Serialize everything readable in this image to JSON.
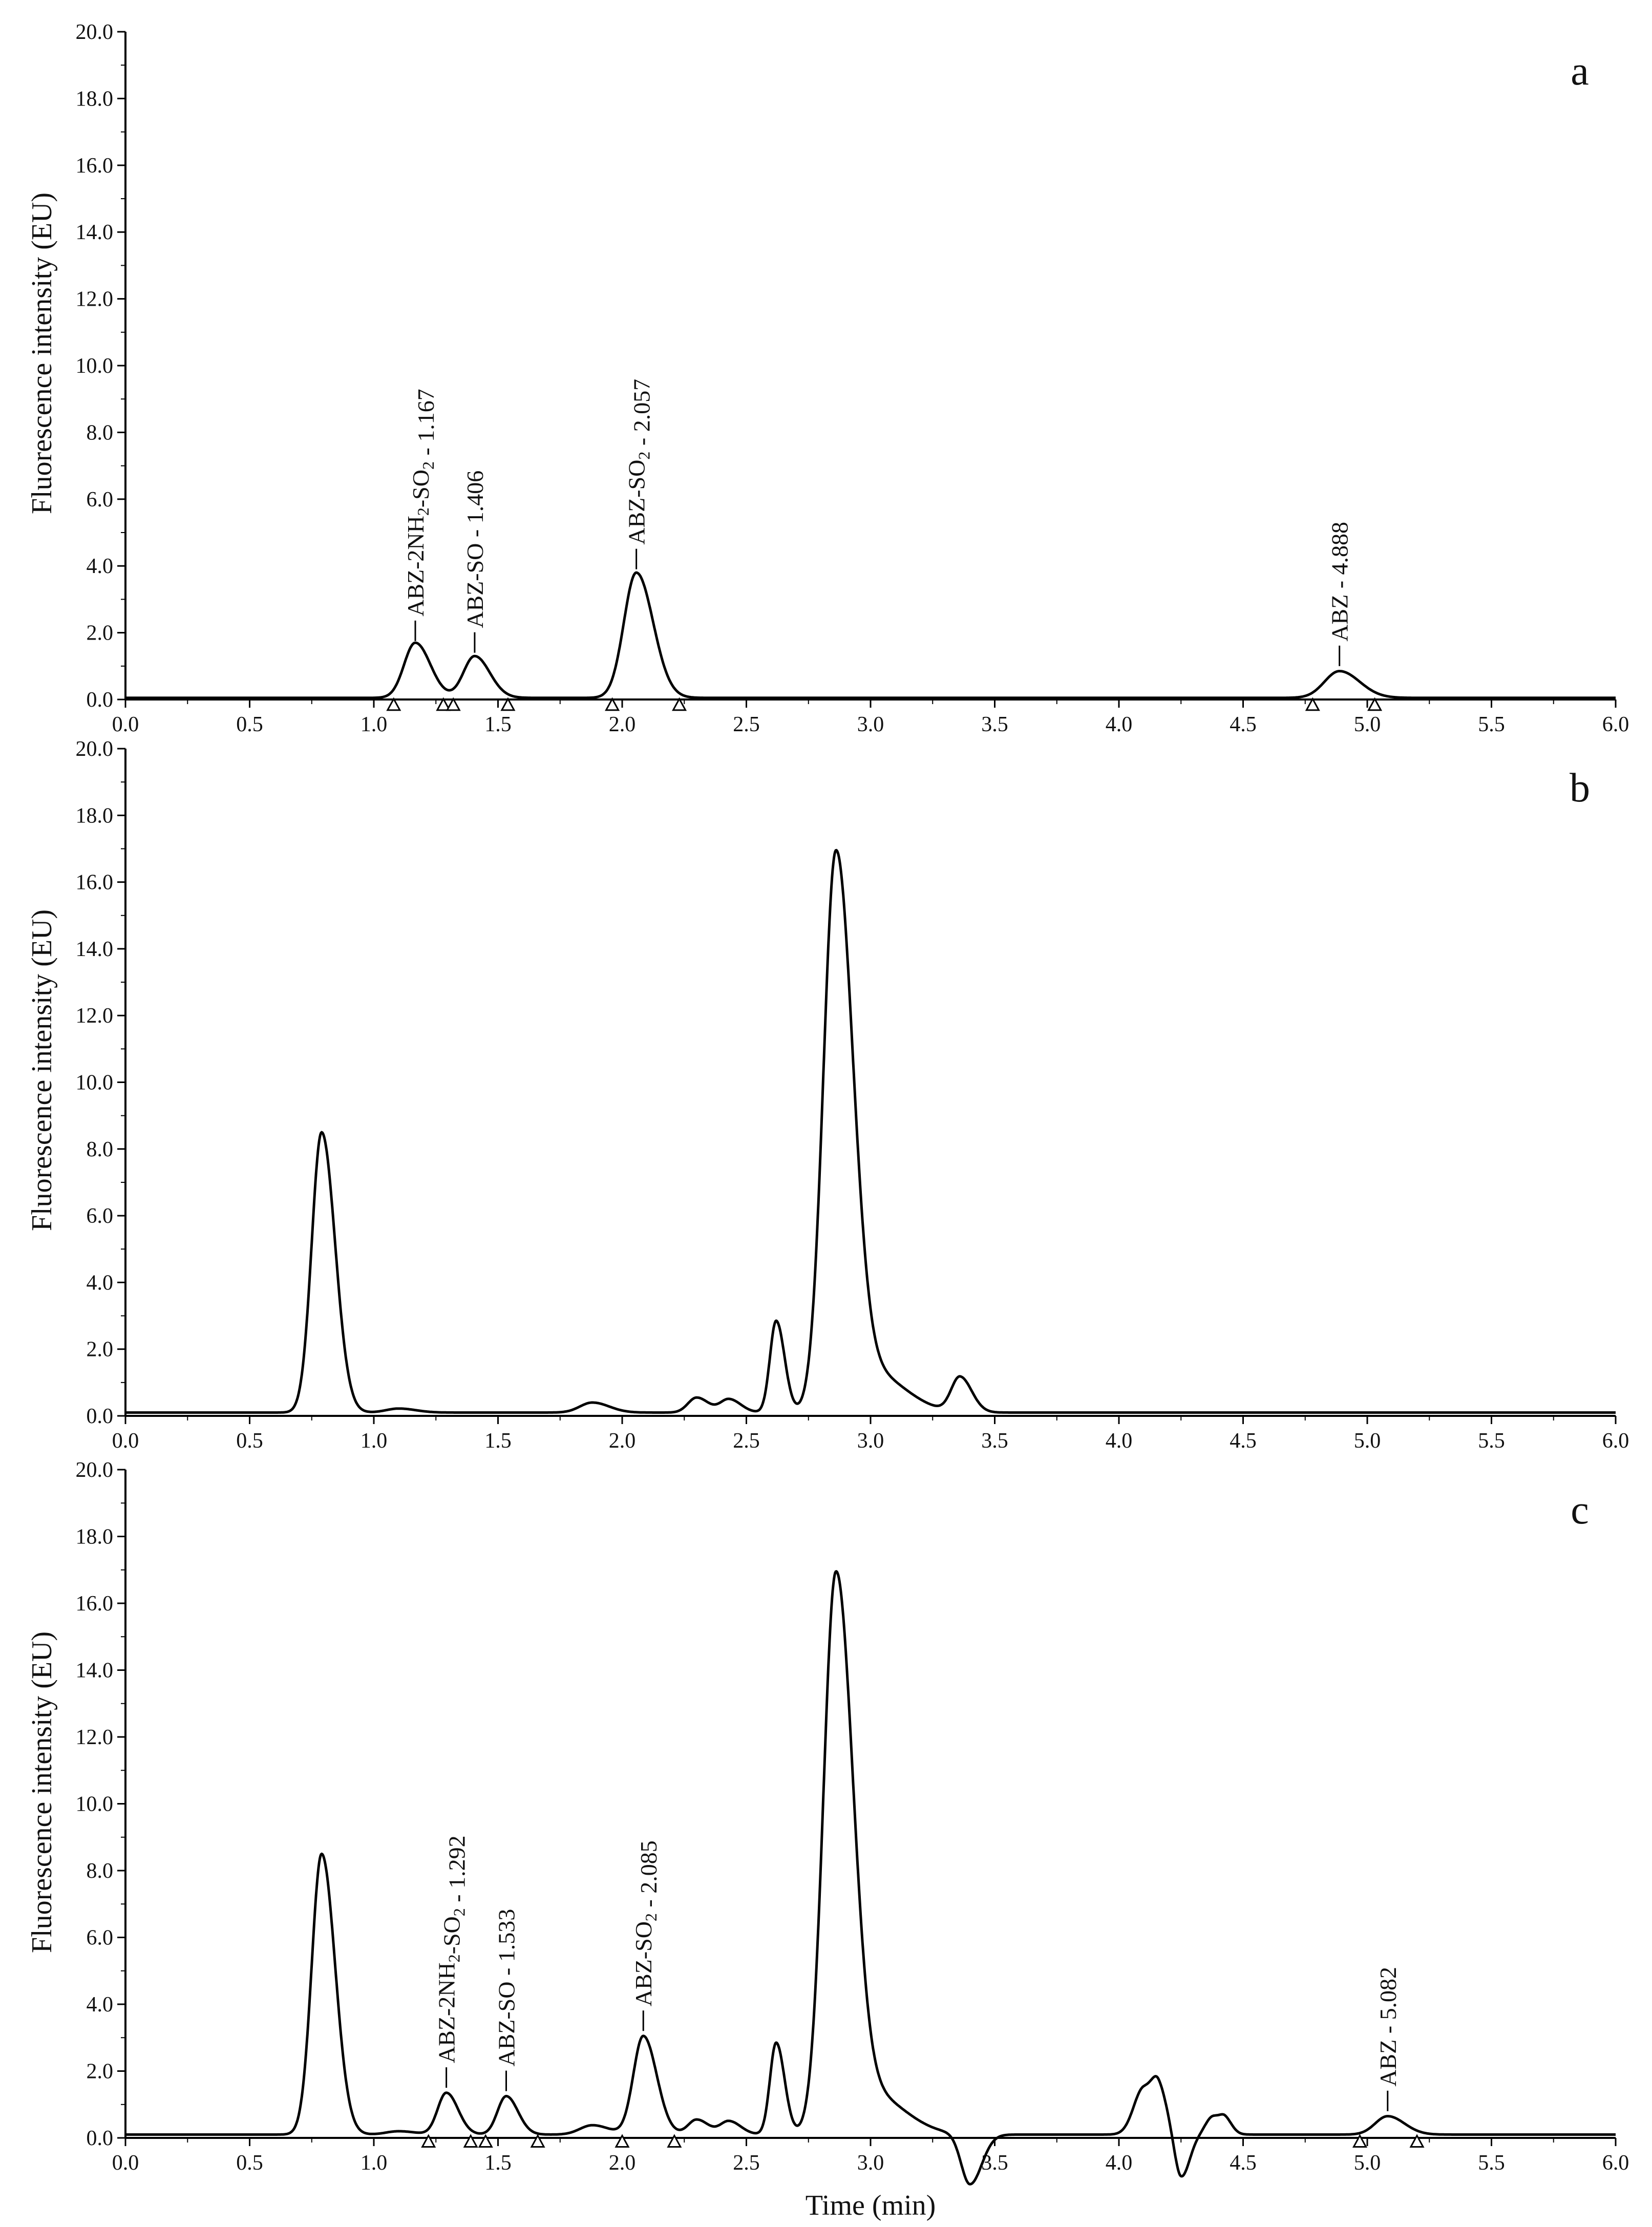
{
  "chart_data": [
    {
      "type": "line",
      "panel_label": "a",
      "xlabel": "",
      "ylabel": "Fluorescence intensity (EU)",
      "xlim": [
        0.0,
        6.0
      ],
      "ylim": [
        0.0,
        20.0
      ],
      "x_ticks": [
        "0.0",
        "0.5",
        "1.0",
        "1.5",
        "2.0",
        "2.5",
        "3.0",
        "3.5",
        "4.0",
        "4.5",
        "5.0",
        "5.5",
        "6.0"
      ],
      "y_ticks": [
        "0.0",
        "2.0",
        "4.0",
        "6.0",
        "8.0",
        "10.0",
        "12.0",
        "14.0",
        "16.0",
        "18.0",
        "20.0"
      ],
      "baseline": 0.05,
      "peaks": [
        {
          "t": 1.167,
          "h": 1.65,
          "w": 0.045
        },
        {
          "t": 1.406,
          "h": 1.25,
          "w": 0.045
        },
        {
          "t": 2.057,
          "h": 3.75,
          "w": 0.05
        },
        {
          "t": 4.888,
          "h": 0.8,
          "w": 0.06
        }
      ],
      "annotations": [
        {
          "base": "ABZ-2NH",
          "sub1": "2",
          "mid": "-SO",
          "sub2": "2",
          "rest": " - 1.167",
          "x": 1.167,
          "y": 1.75
        },
        {
          "base": "ABZ-SO - 1.406",
          "sub1": "",
          "mid": "",
          "sub2": "",
          "rest": "",
          "x": 1.406,
          "y": 1.4
        },
        {
          "base": "ABZ-SO",
          "sub1": "2",
          "mid": "",
          "sub2": "",
          "rest": " - 2.057",
          "x": 2.057,
          "y": 3.9
        },
        {
          "base": "ABZ - 4.888",
          "sub1": "",
          "mid": "",
          "sub2": "",
          "rest": "",
          "x": 4.888,
          "y": 1.0
        }
      ],
      "markers": [
        1.08,
        1.28,
        1.32,
        1.54,
        1.96,
        2.23,
        4.78,
        5.03
      ]
    },
    {
      "type": "line",
      "panel_label": "b",
      "xlabel": "",
      "ylabel": "Fluorescence intensity (EU)",
      "xlim": [
        0.0,
        6.0
      ],
      "ylim": [
        0.0,
        20.0
      ],
      "x_ticks": [
        "0.0",
        "0.5",
        "1.0",
        "1.5",
        "2.0",
        "2.5",
        "3.0",
        "3.5",
        "4.0",
        "4.5",
        "5.0",
        "5.5",
        "6.0"
      ],
      "y_ticks": [
        "0.0",
        "2.0",
        "4.0",
        "6.0",
        "8.0",
        "10.0",
        "12.0",
        "14.0",
        "16.0",
        "18.0",
        "20.0"
      ],
      "baseline": 0.1,
      "peaks": [
        {
          "t": 0.79,
          "h": 8.4,
          "w": 0.04
        },
        {
          "t": 1.1,
          "h": 0.12,
          "w": 0.05
        },
        {
          "t": 1.88,
          "h": 0.3,
          "w": 0.05
        },
        {
          "t": 2.3,
          "h": 0.45,
          "w": 0.035
        },
        {
          "t": 2.43,
          "h": 0.4,
          "w": 0.035
        },
        {
          "t": 2.62,
          "h": 2.75,
          "w": 0.025
        },
        {
          "t": 2.86,
          "h": 16.4,
          "w": 0.05
        },
        {
          "t": 3.0,
          "h": 1.2,
          "w": 0.1
        },
        {
          "t": 3.36,
          "h": 1.05,
          "w": 0.035
        }
      ],
      "annotations": [],
      "markers": []
    },
    {
      "type": "line",
      "panel_label": "c",
      "xlabel": "Time (min)",
      "ylabel": "Fluorescence intensity (EU)",
      "xlim": [
        0.0,
        6.0
      ],
      "ylim": [
        0.0,
        20.0
      ],
      "x_ticks": [
        "0.0",
        "0.5",
        "1.0",
        "1.5",
        "2.0",
        "2.5",
        "3.0",
        "3.5",
        "4.0",
        "4.5",
        "5.0",
        "5.5",
        "6.0"
      ],
      "y_ticks": [
        "0.0",
        "2.0",
        "4.0",
        "6.0",
        "8.0",
        "10.0",
        "12.0",
        "14.0",
        "16.0",
        "18.0",
        "20.0"
      ],
      "baseline": 0.1,
      "peaks": [
        {
          "t": 0.79,
          "h": 8.4,
          "w": 0.04
        },
        {
          "t": 1.1,
          "h": 0.1,
          "w": 0.05
        },
        {
          "t": 1.292,
          "h": 1.25,
          "w": 0.035
        },
        {
          "t": 1.533,
          "h": 1.15,
          "w": 0.035
        },
        {
          "t": 1.88,
          "h": 0.28,
          "w": 0.05
        },
        {
          "t": 2.085,
          "h": 2.95,
          "w": 0.04
        },
        {
          "t": 2.3,
          "h": 0.45,
          "w": 0.035
        },
        {
          "t": 2.43,
          "h": 0.4,
          "w": 0.035
        },
        {
          "t": 2.62,
          "h": 2.75,
          "w": 0.025
        },
        {
          "t": 2.86,
          "h": 16.4,
          "w": 0.05
        },
        {
          "t": 3.0,
          "h": 1.2,
          "w": 0.1
        },
        {
          "t": 3.4,
          "h": -1.5,
          "w": 0.035
        },
        {
          "t": 4.1,
          "h": 1.4,
          "w": 0.04
        },
        {
          "t": 4.16,
          "h": 0.9,
          "w": 0.025
        },
        {
          "t": 4.25,
          "h": -1.3,
          "w": 0.025
        },
        {
          "t": 4.38,
          "h": 0.55,
          "w": 0.03
        },
        {
          "t": 4.43,
          "h": 0.3,
          "w": 0.02
        },
        {
          "t": 5.082,
          "h": 0.55,
          "w": 0.05
        }
      ],
      "annotations": [
        {
          "base": "ABZ-2NH",
          "sub1": "2",
          "mid": "-SO",
          "sub2": "2",
          "rest": " - 1.292",
          "x": 1.292,
          "y": 1.5
        },
        {
          "base": "ABZ-SO - 1.533",
          "sub1": "",
          "mid": "",
          "sub2": "",
          "rest": "",
          "x": 1.533,
          "y": 1.4
        },
        {
          "base": "ABZ-SO",
          "sub1": "2",
          "mid": "",
          "sub2": "",
          "rest": " - 2.085",
          "x": 2.085,
          "y": 3.2
        },
        {
          "base": "ABZ - 5.082",
          "sub1": "",
          "mid": "",
          "sub2": "",
          "rest": "",
          "x": 5.082,
          "y": 0.8
        }
      ],
      "markers": [
        1.22,
        1.39,
        1.45,
        1.66,
        2.0,
        2.21,
        4.97,
        5.2
      ]
    }
  ]
}
